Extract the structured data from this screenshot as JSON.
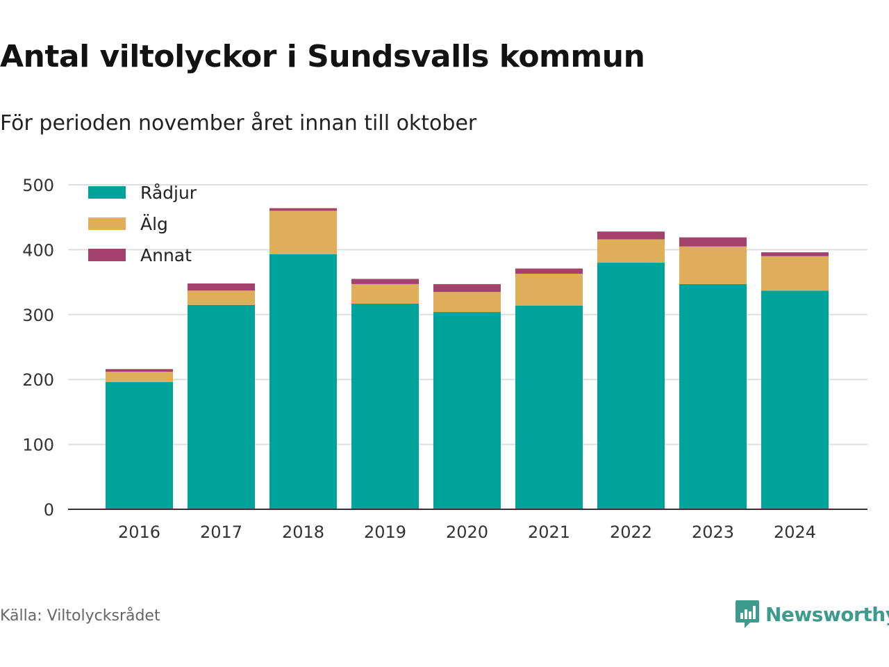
{
  "title": "Antal viltolyckor i Sundsvalls kommun",
  "subtitle": "För perioden november året innan till oktober",
  "source": "Källa: Viltolycksrådet",
  "brand": {
    "name": "Newsworthy",
    "color": "#3d9b8c",
    "icon": "newsworthy-logo-icon"
  },
  "chart_data": {
    "type": "bar",
    "stacked": true,
    "categories": [
      "2016",
      "2017",
      "2018",
      "2019",
      "2020",
      "2021",
      "2022",
      "2023",
      "2024"
    ],
    "series": [
      {
        "name": "Rådjur",
        "color": "#00a39a",
        "values": [
          196,
          315,
          393,
          317,
          304,
          314,
          380,
          347,
          337
        ]
      },
      {
        "name": "Älg",
        "color": "#deae5b",
        "values": [
          16,
          22,
          67,
          30,
          31,
          49,
          36,
          58,
          53
        ]
      },
      {
        "name": "Annat",
        "color": "#a5426b",
        "values": [
          4,
          11,
          4,
          8,
          12,
          8,
          12,
          14,
          6
        ]
      }
    ],
    "ylim": [
      0,
      500
    ],
    "yticks": [
      "0",
      "100",
      "200",
      "300",
      "400",
      "500"
    ],
    "grid": true,
    "legend": "top-left"
  }
}
